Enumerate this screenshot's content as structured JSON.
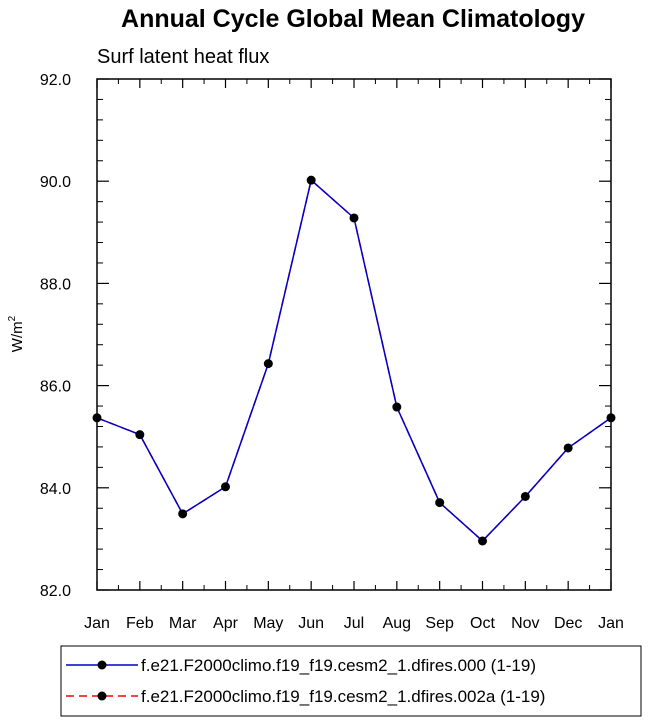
{
  "chart_data": {
    "type": "line",
    "title": "Annual Cycle Global Mean Climatology",
    "subtitle": "Surf latent heat flux",
    "ylabel": "W/m",
    "ylabel_superscript": "2",
    "xlabel": "",
    "categories": [
      "Jan",
      "Feb",
      "Mar",
      "Apr",
      "May",
      "Jun",
      "Jul",
      "Aug",
      "Sep",
      "Oct",
      "Nov",
      "Dec",
      "Jan"
    ],
    "ylim": [
      82.0,
      92.0
    ],
    "yticks": [
      "82.0",
      "84.0",
      "86.0",
      "88.0",
      "90.0",
      "92.0"
    ],
    "ytick_values": [
      82,
      84,
      86,
      88,
      90,
      92
    ],
    "series": [
      {
        "name": "f.e21.F2000climo.f19_f19.cesm2_1.dfires.000 (1-19)",
        "color": "#0000cc",
        "line_style": "solid",
        "values": [
          85.37,
          85.04,
          83.49,
          84.02,
          86.43,
          90.02,
          89.28,
          85.58,
          83.71,
          82.96,
          83.83,
          84.78,
          85.37
        ]
      },
      {
        "name": "f.e21.F2000climo.f19_f19.cesm2_1.dfires.002a (1-19)",
        "color": "#ff0000",
        "line_style": "dashed",
        "values": [
          85.37,
          85.04,
          83.49,
          84.02,
          86.43,
          90.02,
          89.28,
          85.58,
          83.71,
          82.96,
          83.83,
          84.78,
          85.37
        ]
      }
    ],
    "legend_position": "bottom",
    "grid": false
  }
}
